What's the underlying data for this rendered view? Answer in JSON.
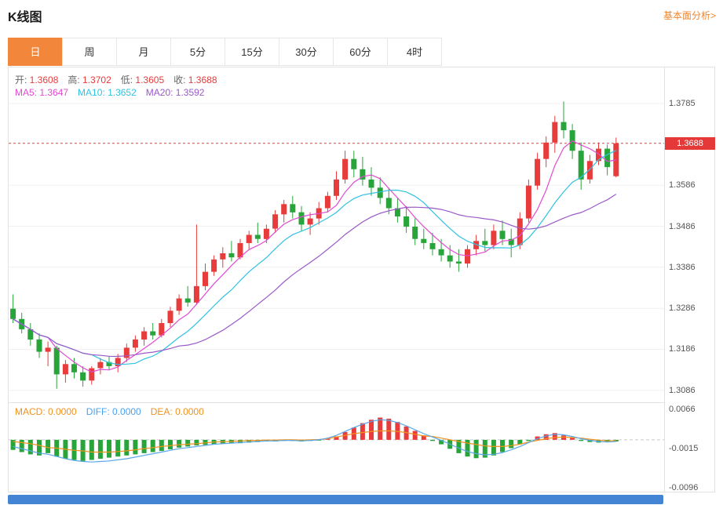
{
  "header": {
    "title": "K线图",
    "analysis_link": "基本面分析>"
  },
  "tabs": [
    {
      "key": "day",
      "label": "日",
      "active": true
    },
    {
      "key": "week",
      "label": "周",
      "active": false
    },
    {
      "key": "month",
      "label": "月",
      "active": false
    },
    {
      "key": "5min",
      "label": "5分",
      "active": false
    },
    {
      "key": "15min",
      "label": "15分",
      "active": false
    },
    {
      "key": "30min",
      "label": "30分",
      "active": false
    },
    {
      "key": "60min",
      "label": "60分",
      "active": false
    },
    {
      "key": "4hour",
      "label": "4时",
      "active": false
    }
  ],
  "legend": {
    "ohlc": [
      {
        "key": "open",
        "label": "开:",
        "value": "1.3608"
      },
      {
        "key": "high",
        "label": "高:",
        "value": "1.3702"
      },
      {
        "key": "low",
        "label": "低:",
        "value": "1.3605"
      },
      {
        "key": "close",
        "label": "收:",
        "value": "1.3688"
      }
    ],
    "ma": [
      {
        "key": "ma5",
        "label": "MA5:",
        "value": "1.3647",
        "color": "#e14ad2"
      },
      {
        "key": "ma10",
        "label": "MA10:",
        "value": "1.3652",
        "color": "#30c2e0"
      },
      {
        "key": "ma20",
        "label": "MA20:",
        "value": "1.3592",
        "color": "#9b59c8"
      }
    ]
  },
  "macd_legend": [
    {
      "key": "macd",
      "label": "MACD:",
      "value": "0.0000",
      "color": "#f0921e"
    },
    {
      "key": "diff",
      "label": "DIFF:",
      "value": "0.0000",
      "color": "#4aa0f0"
    },
    {
      "key": "dea",
      "label": "DEA:",
      "value": "0.0000",
      "color": "#f0921e"
    }
  ],
  "price_axis": {
    "labels": [
      "1.3785",
      "1.3586",
      "1.3486",
      "1.3386",
      "1.3286",
      "1.3186",
      "1.3086"
    ],
    "current_label": "1.3688"
  },
  "colors": {
    "up": "#e83b3b",
    "down": "#28a53a",
    "ma5": "#e14ad2",
    "ma10": "#30c2e0",
    "ma20": "#9b59c8",
    "diff_line": "#5aa7e8",
    "dea_line": "#f0921e",
    "grid": "#f0f0f0",
    "axis_text": "#555555",
    "accent": "#f2873c",
    "scrollbar": "#4484d4",
    "price_tag_bg": "#e53939"
  },
  "chart_data": {
    "type": "candlestick",
    "title": "K线图 (日 / daily)",
    "slots": 75,
    "price_range": [
      1.3057,
      1.3873
    ],
    "gridline_values": [
      1.3785,
      1.3586,
      1.3486,
      1.3386,
      1.3286,
      1.3186,
      1.3086
    ],
    "current_price": 1.3688,
    "last_ohlc": {
      "open": 1.3608,
      "high": 1.3702,
      "low": 1.3605,
      "close": 1.3688
    },
    "ma_periods": [
      5,
      10,
      20
    ],
    "ma_values": {
      "ma5": 1.3647,
      "ma10": 1.3652,
      "ma20": 1.3592
    },
    "candles": [
      [
        1.3285,
        1.332,
        1.325,
        1.326
      ],
      [
        1.326,
        1.3275,
        1.3225,
        1.3235
      ],
      [
        1.3235,
        1.325,
        1.3195,
        1.321
      ],
      [
        1.321,
        1.3225,
        1.3165,
        1.318
      ],
      [
        1.318,
        1.3205,
        1.3145,
        1.319
      ],
      [
        1.319,
        1.3195,
        1.309,
        1.3125
      ],
      [
        1.3125,
        1.316,
        1.3105,
        1.315
      ],
      [
        1.315,
        1.3165,
        1.3115,
        1.313
      ],
      [
        1.313,
        1.3145,
        1.3095,
        1.311
      ],
      [
        1.311,
        1.3145,
        1.31,
        1.314
      ],
      [
        1.314,
        1.3165,
        1.3125,
        1.3155
      ],
      [
        1.3155,
        1.317,
        1.3135,
        1.3145
      ],
      [
        1.3145,
        1.3175,
        1.313,
        1.3165
      ],
      [
        1.3165,
        1.32,
        1.3155,
        1.319
      ],
      [
        1.319,
        1.322,
        1.318,
        1.321
      ],
      [
        1.321,
        1.324,
        1.3195,
        1.323
      ],
      [
        1.323,
        1.325,
        1.321,
        1.322
      ],
      [
        1.322,
        1.326,
        1.3215,
        1.325
      ],
      [
        1.325,
        1.329,
        1.324,
        1.328
      ],
      [
        1.328,
        1.332,
        1.327,
        1.331
      ],
      [
        1.331,
        1.334,
        1.329,
        1.33
      ],
      [
        1.33,
        1.349,
        1.3295,
        1.334
      ],
      [
        1.334,
        1.3395,
        1.333,
        1.3375
      ],
      [
        1.3375,
        1.3415,
        1.3365,
        1.3405
      ],
      [
        1.3405,
        1.3435,
        1.3385,
        1.342
      ],
      [
        1.342,
        1.345,
        1.34,
        1.341
      ],
      [
        1.341,
        1.3455,
        1.3405,
        1.3445
      ],
      [
        1.3445,
        1.3475,
        1.343,
        1.3465
      ],
      [
        1.3465,
        1.3495,
        1.3445,
        1.3455
      ],
      [
        1.3455,
        1.349,
        1.3445,
        1.348
      ],
      [
        1.348,
        1.3525,
        1.347,
        1.3515
      ],
      [
        1.3515,
        1.355,
        1.3495,
        1.354
      ],
      [
        1.354,
        1.356,
        1.3505,
        1.352
      ],
      [
        1.352,
        1.3535,
        1.3475,
        1.349
      ],
      [
        1.349,
        1.352,
        1.3465,
        1.3505
      ],
      [
        1.3505,
        1.3545,
        1.349,
        1.353
      ],
      [
        1.353,
        1.357,
        1.352,
        1.356
      ],
      [
        1.356,
        1.362,
        1.355,
        1.36
      ],
      [
        1.36,
        1.367,
        1.359,
        1.365
      ],
      [
        1.365,
        1.367,
        1.3605,
        1.3625
      ],
      [
        1.3625,
        1.3655,
        1.3585,
        1.36
      ],
      [
        1.36,
        1.363,
        1.356,
        1.358
      ],
      [
        1.358,
        1.3605,
        1.354,
        1.3555
      ],
      [
        1.3555,
        1.358,
        1.3515,
        1.353
      ],
      [
        1.353,
        1.3555,
        1.3495,
        1.351
      ],
      [
        1.351,
        1.3535,
        1.347,
        1.3485
      ],
      [
        1.3485,
        1.3505,
        1.344,
        1.3455
      ],
      [
        1.3455,
        1.348,
        1.343,
        1.3445
      ],
      [
        1.3445,
        1.347,
        1.3415,
        1.343
      ],
      [
        1.343,
        1.3455,
        1.34,
        1.3415
      ],
      [
        1.3415,
        1.344,
        1.3385,
        1.34
      ],
      [
        1.34,
        1.343,
        1.3375,
        1.3395
      ],
      [
        1.3395,
        1.344,
        1.3385,
        1.343
      ],
      [
        1.343,
        1.3465,
        1.3415,
        1.345
      ],
      [
        1.345,
        1.348,
        1.3425,
        1.344
      ],
      [
        1.344,
        1.349,
        1.343,
        1.3475
      ],
      [
        1.3475,
        1.35,
        1.344,
        1.3455
      ],
      [
        1.3455,
        1.348,
        1.341,
        1.344
      ],
      [
        1.344,
        1.352,
        1.343,
        1.3505
      ],
      [
        1.3505,
        1.36,
        1.3495,
        1.3585
      ],
      [
        1.3585,
        1.3665,
        1.3575,
        1.365
      ],
      [
        1.365,
        1.3705,
        1.363,
        1.369
      ],
      [
        1.369,
        1.3755,
        1.3665,
        1.374
      ],
      [
        1.374,
        1.379,
        1.37,
        1.372
      ],
      [
        1.372,
        1.3735,
        1.365,
        1.367
      ],
      [
        1.367,
        1.369,
        1.3575,
        1.36
      ],
      [
        1.36,
        1.366,
        1.359,
        1.3645
      ],
      [
        1.3645,
        1.369,
        1.3635,
        1.3675
      ],
      [
        1.3675,
        1.3685,
        1.361,
        1.363
      ],
      [
        1.3608,
        1.3702,
        1.3605,
        1.3688
      ]
    ],
    "macd": {
      "display": {
        "macd": 0.0,
        "diff": 0.0,
        "dea": 0.0
      },
      "unit": 0.0001,
      "axis_range": [
        -0.0096,
        0.0066
      ],
      "axis_labels": [
        "0.0066",
        "-0.0015",
        "-0.0096"
      ],
      "axis_label_values": [
        0.0066,
        -0.0015,
        -0.0096
      ],
      "hist": [
        -18,
        -22,
        -26,
        -28,
        -24,
        -30,
        -34,
        -36,
        -38,
        -36,
        -34,
        -32,
        -30,
        -28,
        -26,
        -24,
        -22,
        -20,
        -17,
        -14,
        -12,
        -10,
        -9,
        -8,
        -7,
        -6,
        -6,
        -5,
        -4,
        -3,
        -3,
        -2,
        -2,
        -3,
        -2,
        -1,
        2,
        6,
        14,
        22,
        30,
        36,
        40,
        38,
        32,
        24,
        16,
        8,
        -2,
        -8,
        -16,
        -24,
        -30,
        -33,
        -32,
        -28,
        -22,
        -15,
        -8,
        -2,
        6,
        10,
        12,
        8,
        4,
        -2,
        -4,
        -5,
        -4,
        -3
      ],
      "diff": [
        -12,
        -16,
        -20,
        -24,
        -26,
        -30,
        -34,
        -37,
        -39,
        -40,
        -39,
        -38,
        -36,
        -34,
        -31,
        -28,
        -25,
        -22,
        -19,
        -16,
        -14,
        -12,
        -10,
        -8,
        -7,
        -6,
        -5,
        -4,
        -3,
        -2,
        -2,
        -1,
        -1,
        -2,
        -1,
        0,
        3,
        8,
        15,
        22,
        28,
        33,
        36,
        35,
        31,
        25,
        18,
        11,
        5,
        -1,
        -8,
        -15,
        -21,
        -25,
        -27,
        -26,
        -23,
        -18,
        -12,
        -5,
        2,
        7,
        10,
        9,
        6,
        2,
        -1,
        -3,
        -4,
        -3
      ]
    }
  }
}
